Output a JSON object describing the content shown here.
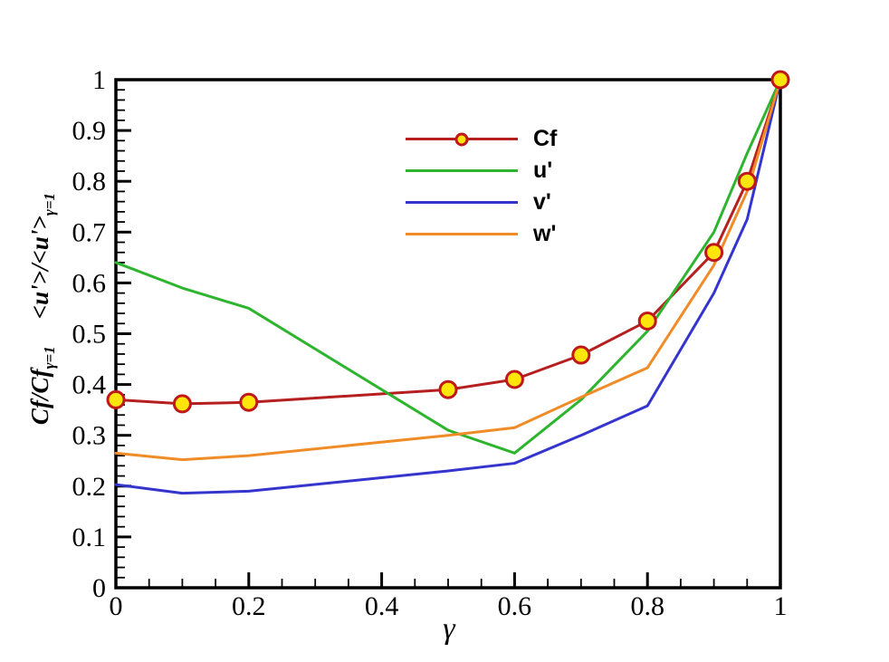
{
  "axes": {
    "x_label": "γ",
    "y_label": {
      "part1_main": "Cf/Cf",
      "part1_sub": "γ=1",
      "part2_main": "<u'>/<u'>",
      "part2_sub": "γ=1"
    }
  },
  "chart_data": {
    "type": "line",
    "title": "",
    "xlabel": "γ",
    "ylabel": "Cf/Cf_γ=1  <u'>/<u'>_γ=1",
    "xlim": [
      0,
      1
    ],
    "ylim": [
      0,
      1
    ],
    "grid": false,
    "legend_position": "upper-center",
    "x": [
      0,
      0.1,
      0.2,
      0.5,
      0.6,
      0.7,
      0.8,
      0.9,
      0.95,
      1
    ],
    "series": [
      {
        "name": "Cf",
        "color": "#b51f1f",
        "marker": "circle",
        "marker_fill": "#ffe60a",
        "marker_edge": "#c01818",
        "values": [
          0.37,
          0.362,
          0.365,
          0.39,
          0.41,
          0.458,
          0.525,
          0.66,
          0.8,
          1.0
        ]
      },
      {
        "name": "u'",
        "color": "#2eb42e",
        "values": [
          0.64,
          0.59,
          0.55,
          0.31,
          0.265,
          0.37,
          0.505,
          0.7,
          0.855,
          1.0
        ]
      },
      {
        "name": "v'",
        "color": "#3535cd",
        "values": [
          0.203,
          0.186,
          0.19,
          0.23,
          0.245,
          0.3,
          0.358,
          0.58,
          0.725,
          1.0
        ]
      },
      {
        "name": "w'",
        "color": "#f08c28",
        "values": [
          0.265,
          0.252,
          0.26,
          0.3,
          0.315,
          0.375,
          0.433,
          0.635,
          0.78,
          1.0
        ]
      }
    ],
    "x_ticks": {
      "major": [
        0,
        0.2,
        0.4,
        0.6,
        0.8,
        1
      ],
      "labels": [
        "0",
        "0.2",
        "0.4",
        "0.6",
        "0.8",
        "1"
      ],
      "minor_step": 0.05
    },
    "y_ticks": {
      "major": [
        0,
        0.1,
        0.2,
        0.3,
        0.4,
        0.5,
        0.6,
        0.7,
        0.8,
        0.9,
        1
      ],
      "labels": [
        "0",
        "0.1",
        "0.2",
        "0.3",
        "0.4",
        "0.5",
        "0.6",
        "0.7",
        "0.8",
        "0.9",
        "1"
      ],
      "minor_step": 0.02
    }
  }
}
